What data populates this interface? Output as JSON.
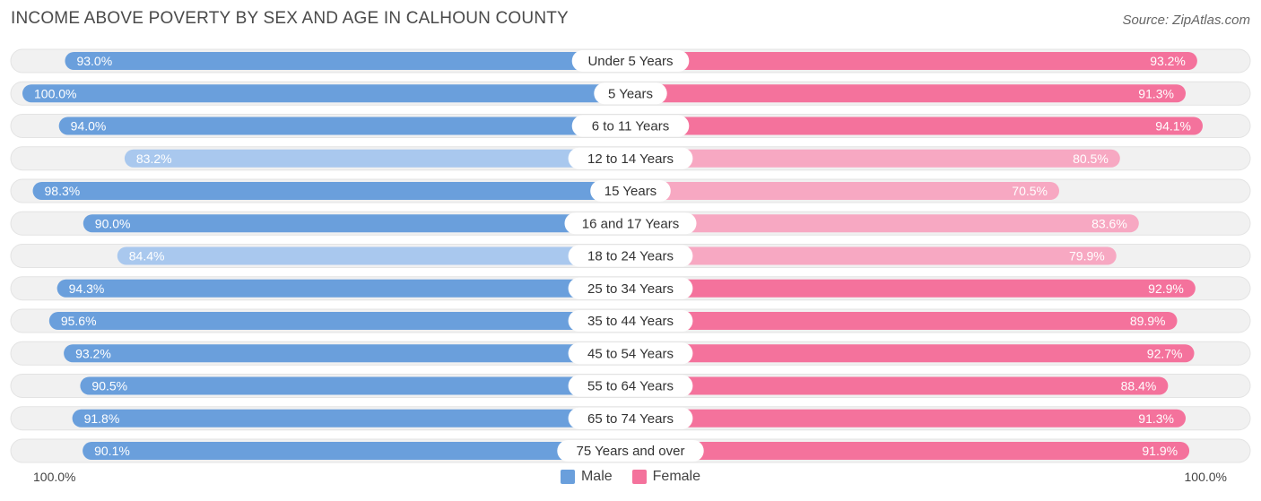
{
  "header": {
    "title": "INCOME ABOVE POVERTY BY SEX AND AGE IN CALHOUN COUNTY",
    "source": "Source: ZipAtlas.com"
  },
  "axis": {
    "left_label": "100.0%",
    "right_label": "100.0%"
  },
  "colors": {
    "male_strong": "#6a9fdc",
    "male_light": "#a9c8ee",
    "female_strong": "#f4729c",
    "female_light": "#f7a8c2",
    "track": "#f1f1f1"
  },
  "chart_data": {
    "type": "bar",
    "orientation": "horizontal-diverging",
    "title": "INCOME ABOVE POVERTY BY SEX AND AGE IN CALHOUN COUNTY",
    "categories": [
      "Under 5 Years",
      "5 Years",
      "6 to 11 Years",
      "12 to 14 Years",
      "15 Years",
      "16 and 17 Years",
      "18 to 24 Years",
      "25 to 34 Years",
      "35 to 44 Years",
      "45 to 54 Years",
      "55 to 64 Years",
      "65 to 74 Years",
      "75 Years and over"
    ],
    "series": [
      {
        "name": "Male",
        "values": [
          93.0,
          100.0,
          94.0,
          83.2,
          98.3,
          90.0,
          84.4,
          94.3,
          95.6,
          93.2,
          90.5,
          91.8,
          90.1
        ],
        "labels": [
          "93.0%",
          "100.0%",
          "94.0%",
          "83.2%",
          "98.3%",
          "90.0%",
          "84.4%",
          "94.3%",
          "95.6%",
          "93.2%",
          "90.5%",
          "91.8%",
          "90.1%"
        ]
      },
      {
        "name": "Female",
        "values": [
          93.2,
          91.3,
          94.1,
          80.5,
          70.5,
          83.6,
          79.9,
          92.9,
          89.9,
          92.7,
          88.4,
          91.3,
          91.9
        ],
        "labels": [
          "93.2%",
          "91.3%",
          "94.1%",
          "80.5%",
          "70.5%",
          "83.6%",
          "79.9%",
          "92.9%",
          "89.9%",
          "92.7%",
          "88.4%",
          "91.3%",
          "91.9%"
        ]
      }
    ],
    "xlim": [
      0,
      100
    ],
    "legend_position": "bottom-center"
  }
}
